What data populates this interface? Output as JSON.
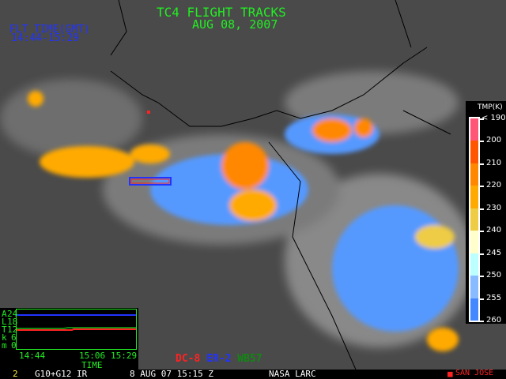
{
  "title": "TC4 FLIGHT TRACKS",
  "date": "AUG 08, 2007",
  "flight_time": {
    "label": "FLT TIME(GMT)",
    "range": "14:44-15:29"
  },
  "legend": {
    "header": "TMP(K)",
    "labels": [
      "< 190",
      "200",
      "210",
      "220",
      "230",
      "240",
      "245",
      "250",
      "255",
      "260"
    ],
    "colors": [
      "#ff5577",
      "#ff5500",
      "#ff8800",
      "#ffaa00",
      "#eecc44",
      "#ffffcc",
      "#bbffff",
      "#88bbff",
      "#4488ff"
    ]
  },
  "altitude_plot": {
    "ylabel_chars": [
      "A",
      "L",
      "T",
      "k",
      "m"
    ],
    "yticks": [
      "24",
      "18",
      "12",
      "6",
      "0"
    ],
    "xticks": [
      "14:44",
      "15:06",
      "15:29"
    ],
    "xlabel": "TIME",
    "series": [
      {
        "name": "ER-2",
        "color": "#2233ff",
        "altitude_km": 20
      },
      {
        "name": "WB57",
        "color": "#118811",
        "altitude_km": [
          12,
          12,
          12.5,
          12.5
        ]
      },
      {
        "name": "DC-8",
        "color": "#ff2222",
        "altitude_km": [
          11,
          11,
          11.3,
          11.3
        ]
      }
    ]
  },
  "aircraft": [
    {
      "name": "DC-8",
      "color": "#ff2222"
    },
    {
      "name": "ER-2",
      "color": "#2233ff"
    },
    {
      "name": "WB57",
      "color": "#118811"
    }
  ],
  "status": {
    "frame": "2",
    "sensor": "G10+G12 IR",
    "datetime": "8 AUG 07 15:15 Z",
    "source": "NASA LARC",
    "marker": "SAN JOSE"
  }
}
